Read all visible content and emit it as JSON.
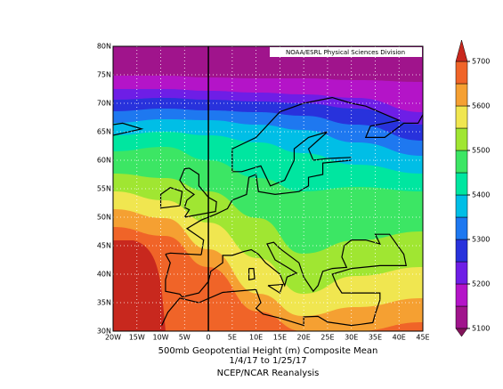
{
  "map": {
    "watermark": "NOAA/ESRL Physical Sciences Division",
    "lat_labels": [
      "30N",
      "35N",
      "40N",
      "45N",
      "50N",
      "55N",
      "60N",
      "65N",
      "70N",
      "75N",
      "80N"
    ],
    "lon_labels": [
      "20W",
      "15W",
      "10W",
      "5W",
      "0",
      "5E",
      "10E",
      "15E",
      "20E",
      "25E",
      "30E",
      "35E",
      "40E",
      "45E"
    ],
    "colorbar": {
      "levels": [
        5100,
        5200,
        5300,
        5400,
        5500,
        5600,
        5700
      ],
      "colors": [
        "#82145a",
        "#a0148c",
        "#b414c8",
        "#6e1ee6",
        "#2832dc",
        "#1e78f0",
        "#00bee6",
        "#00e6a0",
        "#3ce664",
        "#a0e632",
        "#f0e650",
        "#f5a032",
        "#f06428",
        "#c8281e"
      ]
    },
    "caption": {
      "line1": "500mb Geopotential Height (m) Composite Mean",
      "line2": "1/4/17  to 1/25/17",
      "line3": "NCEP/NCAR Reanalysis"
    }
  }
}
